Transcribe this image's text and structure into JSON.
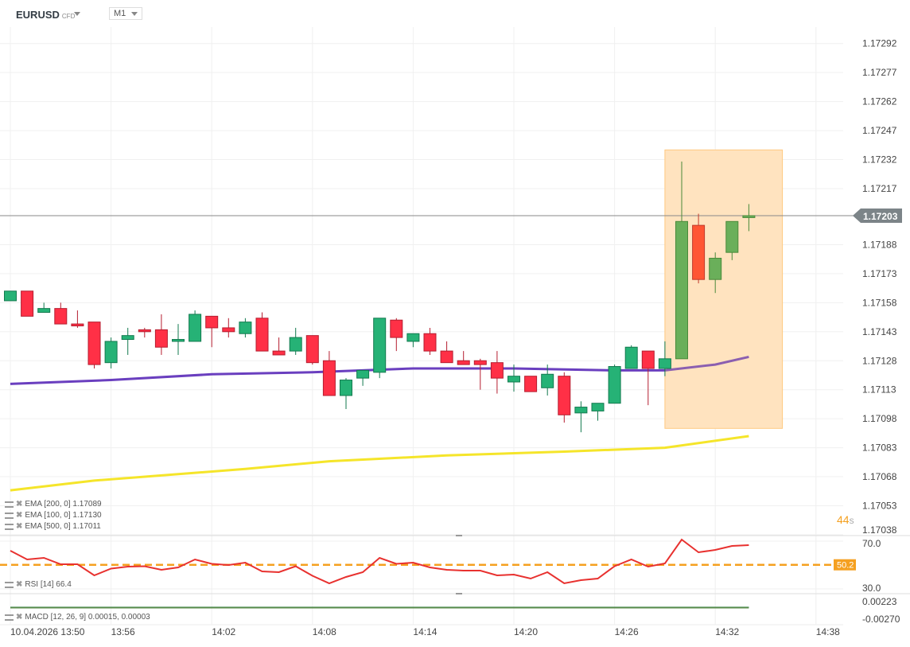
{
  "header": {
    "symbol": "EURUSD",
    "instrument_type": "CFD",
    "timeframe": "M1"
  },
  "colors": {
    "up": "#26b276",
    "down": "#ff3046",
    "up_highlight": "#6aaf5a",
    "down_highlight": "#ff5533",
    "ema100": "#6a3fbf",
    "ema200": "#f5e52a",
    "rsi": "#e8312f",
    "rsi_level": "#f5a020",
    "highlight_box": "#ffe3bf",
    "price_tag": "#7c8488"
  },
  "price_axis": [
    "1.17292",
    "1.17277",
    "1.17262",
    "1.17247",
    "1.17232",
    "1.17217",
    "1.17188",
    "1.17173",
    "1.17158",
    "1.17143",
    "1.17128",
    "1.17113",
    "1.17098",
    "1.17083",
    "1.17068",
    "1.17053",
    "1.17038"
  ],
  "current_price": "1.17203",
  "countdown": {
    "value": "44",
    "unit": "s"
  },
  "time_axis": [
    {
      "label": "10.04.2026 13:50",
      "minute": 0
    },
    {
      "label": "13:56",
      "minute": 6
    },
    {
      "label": "14:02",
      "minute": 12
    },
    {
      "label": "14:08",
      "minute": 18
    },
    {
      "label": "14:14",
      "minute": 24
    },
    {
      "label": "14:20",
      "minute": 30
    },
    {
      "label": "14:26",
      "minute": 36
    },
    {
      "label": "14:32",
      "minute": 42
    },
    {
      "label": "14:38",
      "minute": 48
    }
  ],
  "highlight": {
    "from_minute": 39,
    "to_minute": 46,
    "price_top": 1.17237,
    "price_bottom": 1.17093
  },
  "candles": [
    [
      1.17159,
      1.17164,
      1.17159,
      1.17164
    ],
    [
      1.17164,
      1.17164,
      1.17151,
      1.17151
    ],
    [
      1.17153,
      1.17158,
      1.17153,
      1.17155
    ],
    [
      1.17155,
      1.17158,
      1.17147,
      1.17147
    ],
    [
      1.17147,
      1.17154,
      1.17145,
      1.17146
    ],
    [
      1.17148,
      1.17148,
      1.17124,
      1.17126
    ],
    [
      1.17127,
      1.1714,
      1.17124,
      1.17138
    ],
    [
      1.17139,
      1.17145,
      1.17131,
      1.17141
    ],
    [
      1.17144,
      1.17145,
      1.1714,
      1.17143
    ],
    [
      1.17144,
      1.17152,
      1.17131,
      1.17135
    ],
    [
      1.17138,
      1.17147,
      1.17131,
      1.17139
    ],
    [
      1.17138,
      1.17154,
      1.17138,
      1.17152
    ],
    [
      1.17151,
      1.17151,
      1.17135,
      1.17145
    ],
    [
      1.17145,
      1.1715,
      1.1714,
      1.17143
    ],
    [
      1.17142,
      1.1715,
      1.1714,
      1.17148
    ],
    [
      1.1715,
      1.17153,
      1.17133,
      1.17133
    ],
    [
      1.17133,
      1.1714,
      1.17131,
      1.17131
    ],
    [
      1.17133,
      1.17145,
      1.17131,
      1.1714
    ],
    [
      1.17141,
      1.17141,
      1.17126,
      1.17127
    ],
    [
      1.17128,
      1.17133,
      1.1711,
      1.1711
    ],
    [
      1.1711,
      1.17119,
      1.17103,
      1.17118
    ],
    [
      1.17119,
      1.17123,
      1.17115,
      1.17123
    ],
    [
      1.17122,
      1.1715,
      1.17119,
      1.1715
    ],
    [
      1.17149,
      1.1715,
      1.17133,
      1.1714
    ],
    [
      1.17138,
      1.17142,
      1.17135,
      1.17142
    ],
    [
      1.17142,
      1.17145,
      1.17131,
      1.17133
    ],
    [
      1.17133,
      1.17138,
      1.17127,
      1.17127
    ],
    [
      1.17128,
      1.17133,
      1.17126,
      1.17126
    ],
    [
      1.17128,
      1.17129,
      1.17113,
      1.17126
    ],
    [
      1.17127,
      1.17133,
      1.17111,
      1.17119
    ],
    [
      1.17117,
      1.17126,
      1.17112,
      1.1712
    ],
    [
      1.1712,
      1.1712,
      1.17112,
      1.17112
    ],
    [
      1.17114,
      1.17126,
      1.1711,
      1.17121
    ],
    [
      1.1712,
      1.17122,
      1.17096,
      1.171
    ],
    [
      1.17101,
      1.17107,
      1.17091,
      1.17104
    ],
    [
      1.17102,
      1.17106,
      1.17097,
      1.17106
    ],
    [
      1.17106,
      1.17126,
      1.17106,
      1.17125
    ],
    [
      1.17124,
      1.17136,
      1.17124,
      1.17135
    ],
    [
      1.17133,
      1.17133,
      1.17105,
      1.17124
    ],
    [
      1.17124,
      1.17138,
      1.1712,
      1.17129
    ],
    [
      1.17129,
      1.17231,
      1.17129,
      1.172
    ],
    [
      1.17198,
      1.17204,
      1.17168,
      1.1717
    ],
    [
      1.1717,
      1.17184,
      1.17163,
      1.17181
    ],
    [
      1.17184,
      1.172,
      1.1718,
      1.172
    ],
    [
      1.17202,
      1.17209,
      1.17195,
      1.17203
    ]
  ],
  "ema100": [
    [
      0,
      1.17116
    ],
    [
      6,
      1.17118
    ],
    [
      12,
      1.17121
    ],
    [
      18,
      1.17122
    ],
    [
      24,
      1.17124
    ],
    [
      30,
      1.17124
    ],
    [
      36,
      1.17123
    ],
    [
      39,
      1.17123
    ],
    [
      42,
      1.17126
    ],
    [
      44,
      1.1713
    ]
  ],
  "ema200": [
    [
      0,
      1.17061
    ],
    [
      5,
      1.17066
    ],
    [
      14,
      1.17072
    ],
    [
      19,
      1.17076
    ],
    [
      26,
      1.17079
    ],
    [
      33,
      1.17081
    ],
    [
      39,
      1.17083
    ],
    [
      44,
      1.17089
    ]
  ],
  "indicators": [
    {
      "label": "EMA [200, 0] 1.17089"
    },
    {
      "label": "EMA [100, 0] 1.17130"
    },
    {
      "label": "EMA [500, 0] 1.17011"
    }
  ],
  "rsi": {
    "label": "RSI [14] 66.4",
    "level": "50.2",
    "axis": [
      "70.0",
      "30.0"
    ],
    "values": [
      62,
      54.7,
      56,
      50.7,
      50.7,
      41.3,
      47,
      48.7,
      49,
      46,
      48,
      54.7,
      51,
      50,
      52,
      44.7,
      44,
      49,
      41,
      34.7,
      40,
      44,
      56,
      51,
      52,
      48,
      46,
      45.3,
      45.3,
      41.3,
      42,
      38.7,
      44,
      34.7,
      37.3,
      38.7,
      49,
      54.7,
      48.7,
      51.3,
      71.3,
      60.7,
      62.7,
      66,
      66.7
    ]
  },
  "macd": {
    "label": "MACD [12, 26, 9] 0.00015, 0.00003",
    "axis": [
      "0.00223",
      "-0.00270"
    ],
    "macd_value": 0.00015,
    "signal_value": 3e-05
  }
}
